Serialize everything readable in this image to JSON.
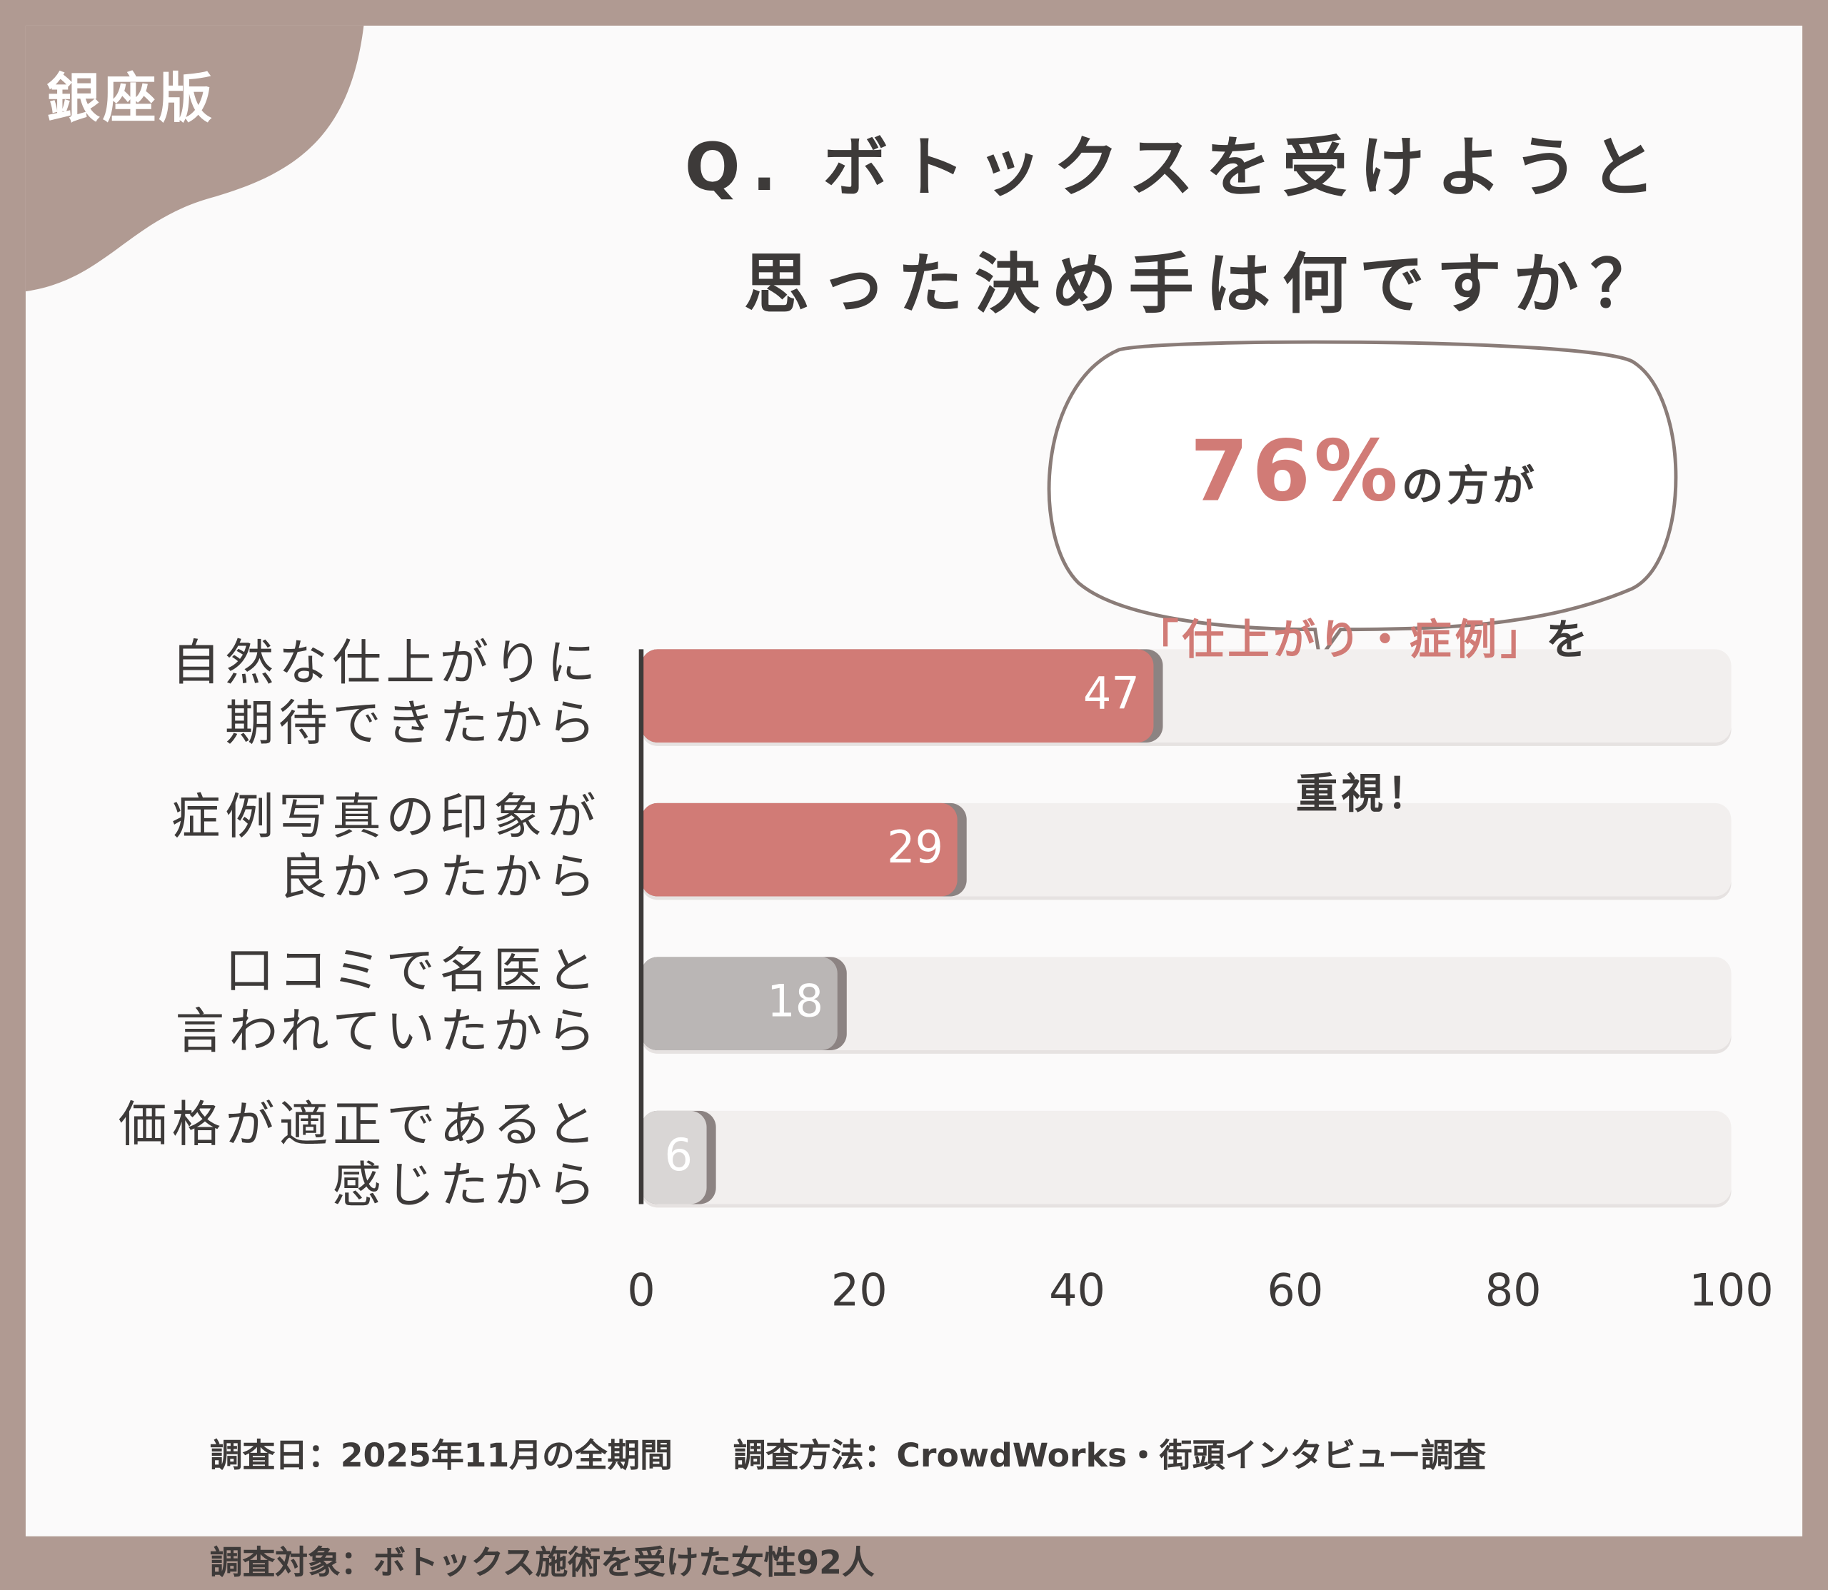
{
  "badge": "銀座版",
  "chart_data": {
    "type": "bar",
    "orientation": "horizontal",
    "title": "Q. ボトックスを受けようと\n思った決め手は何ですか？",
    "categories": [
      "自然な仕上がりに\n期待できたから",
      "症例写真の印象が\n良かったから",
      "口コミで名医と\n言われていたから",
      "価格が適正であると\n感じたから"
    ],
    "values": [
      47,
      29,
      18,
      6
    ],
    "colors": [
      "#d17b76",
      "#d17b76",
      "#bab6b5",
      "#d9d6d5"
    ],
    "track_color": "#f2efee",
    "xlim": [
      0,
      100
    ],
    "xticks": [
      0,
      20,
      40,
      60,
      80,
      100
    ],
    "callout": {
      "highlight": "76%",
      "rest1": "の方が",
      "highlight2": "「仕上がり・症例」",
      "rest2": "を",
      "line3": "重視！"
    }
  },
  "notes": [
    "調査日：2025年11月の全期間",
    "調査方法：CrowdWorks・街頭インタビュー調査",
    "調査対象：ボトックス施術を受けた女性92人"
  ]
}
